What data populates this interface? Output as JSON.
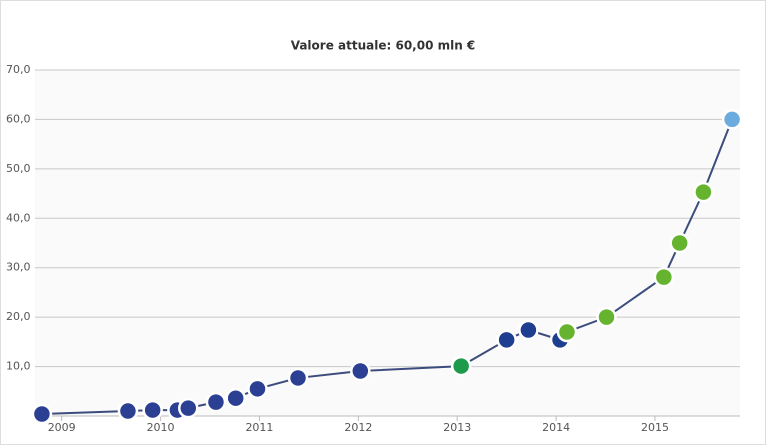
{
  "chart_data": {
    "type": "line",
    "title": "Valore attuale: 60,00 mln €",
    "x": [
      2008.8,
      2009.67,
      2009.92,
      2010.17,
      2010.28,
      2010.56,
      2010.76,
      2010.98,
      2011.39,
      2012.02,
      2013.04,
      2013.5,
      2013.72,
      2014.04,
      2014.11,
      2014.51,
      2015.09,
      2015.25,
      2015.49,
      2015.78
    ],
    "series": [
      {
        "color": "#3c4d7d",
        "values": [
          0.4,
          1.0,
          1.2,
          1.2,
          1.6,
          2.8,
          3.6,
          5.5,
          7.7,
          9.1,
          10.1,
          15.4,
          17.4,
          15.4,
          17.0,
          20.0,
          28.1,
          35.0,
          45.3,
          60
        ],
        "marker_colors": [
          "#2b3f93",
          "#2b3f93",
          "#2b3f93",
          "#2b3f93",
          "#2b3f93",
          "#2b3f93",
          "#2b3f93",
          "#2b3f93",
          "#2b3f93",
          "#2b3f93",
          "#1d9a4a",
          "#1e3f8f",
          "#1e3f8f",
          "#1e3f8f",
          "#65b32e",
          "#65b32e",
          "#65b32e",
          "#65b32e",
          "#65b32e",
          "#6cabdd"
        ]
      }
    ],
    "xlim": [
      2008.73,
      2015.86
    ],
    "xticks": [
      2009,
      2010,
      2011,
      2012,
      2013,
      2014,
      2015
    ],
    "ylim": [
      0,
      70
    ],
    "yticks": [
      {
        "value": 10,
        "label": "10,0"
      },
      {
        "value": 20,
        "label": "20,0"
      },
      {
        "value": 30,
        "label": "30,0"
      },
      {
        "value": 40,
        "label": "40,0"
      },
      {
        "value": 50,
        "label": "50,0"
      },
      {
        "value": 60,
        "label": "60,0"
      },
      {
        "value": 70,
        "label": "70,0"
      }
    ],
    "grid": true
  }
}
